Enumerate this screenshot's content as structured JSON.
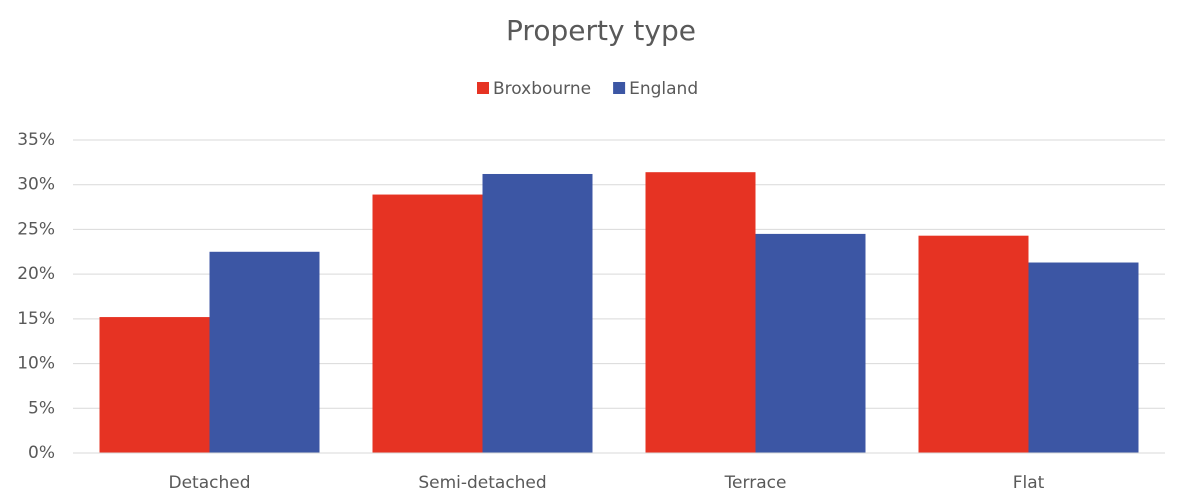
{
  "chart_data": {
    "type": "bar",
    "title": "Property type",
    "categories": [
      "Detached",
      "Semi-detached",
      "Terrace",
      "Flat"
    ],
    "series": [
      {
        "name": "Broxbourne",
        "color": "#e63323",
        "values": [
          15.2,
          28.9,
          31.4,
          24.3
        ]
      },
      {
        "name": "England",
        "color": "#3c56a4",
        "values": [
          22.5,
          31.2,
          24.5,
          21.3
        ]
      }
    ],
    "ylim": [
      0,
      35
    ],
    "yticks": [
      {
        "value": 0,
        "label": "0%"
      },
      {
        "value": 5,
        "label": "5%"
      },
      {
        "value": 10,
        "label": "10%"
      },
      {
        "value": 15,
        "label": "15%"
      },
      {
        "value": 20,
        "label": "20%"
      },
      {
        "value": 25,
        "label": "25%"
      },
      {
        "value": 30,
        "label": "30%"
      },
      {
        "value": 35,
        "label": "35%"
      }
    ],
    "grid": true,
    "legend": "top"
  }
}
